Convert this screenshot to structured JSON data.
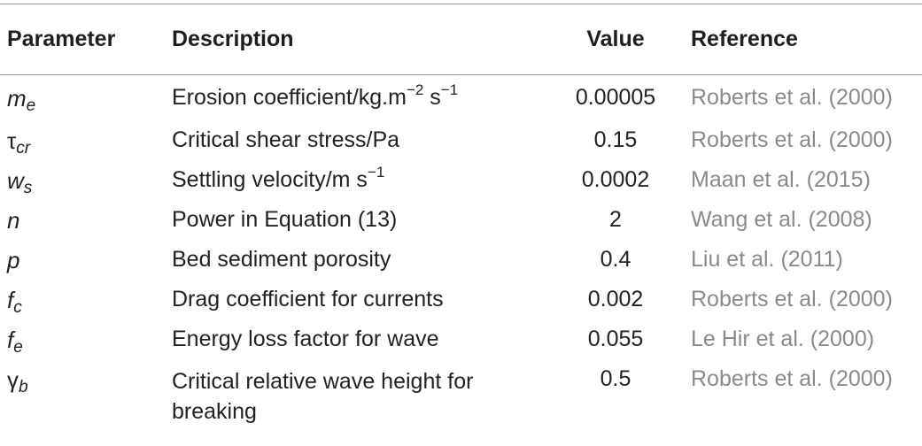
{
  "headers": {
    "parameter": "Parameter",
    "description": "Description",
    "value": "Value",
    "reference": "Reference"
  },
  "rows": [
    {
      "sym_main": "m",
      "sym_sub": "e",
      "description": "Erosion coefficient/kg.m",
      "desc_sup1": "−2",
      "desc_mid": " s",
      "desc_sup2": "−1",
      "value": "0.00005",
      "reference": "Roberts et al. (2000)"
    },
    {
      "sym_main": "τ",
      "sym_sub": "cr",
      "description": "Critical shear stress/Pa",
      "value": "0.15",
      "reference": "Roberts et al. (2000)"
    },
    {
      "sym_main": "w",
      "sym_sub": "s",
      "description": "Settling velocity/m s",
      "desc_sup1": "−1",
      "value": "0.0002",
      "reference": "Maan et al. (2015)"
    },
    {
      "sym_main": "n",
      "description": "Power in Equation (13)",
      "value": "2",
      "reference": "Wang et al. (2008)"
    },
    {
      "sym_main": "p",
      "description": "Bed sediment porosity",
      "value": "0.4",
      "reference": "Liu et al. (2011)"
    },
    {
      "sym_main": "f",
      "sym_sub": "c",
      "description": "Drag coefficient for currents",
      "value": "0.002",
      "reference": "Roberts et al. (2000)"
    },
    {
      "sym_main": "f",
      "sym_sub": "e",
      "description": "Energy loss factor for wave",
      "value": "0.055",
      "reference": "Le Hir et al. (2000)"
    },
    {
      "sym_main": "γ",
      "sym_sub": "b",
      "description": "Critical relative wave height for breaking",
      "value": "0.5",
      "reference": "Roberts et al. (2000)"
    }
  ]
}
